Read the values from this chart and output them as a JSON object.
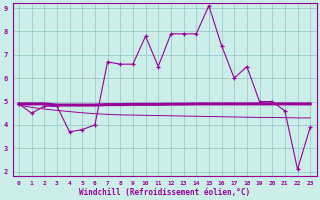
{
  "xlabel": "Windchill (Refroidissement éolien,°C)",
  "bg_color": "#cceee8",
  "grid_color": "#99cccc",
  "line_color": "#990099",
  "xlim": [
    -0.5,
    23.5
  ],
  "ylim": [
    1.8,
    9.2
  ],
  "yticks": [
    2,
    3,
    4,
    5,
    6,
    7,
    8,
    9
  ],
  "xticks": [
    0,
    1,
    2,
    3,
    4,
    5,
    6,
    7,
    8,
    9,
    10,
    11,
    12,
    13,
    14,
    15,
    16,
    17,
    18,
    19,
    20,
    21,
    22,
    23
  ],
  "xtick_labels": [
    "0",
    "1",
    "2",
    "3",
    "4",
    "5",
    "6",
    "7",
    "8",
    "9",
    "10",
    "11",
    "12",
    "13",
    "14",
    "15",
    "16",
    "17",
    "18",
    "19",
    "20",
    "21",
    "22",
    "23"
  ],
  "series1_x": [
    0,
    1,
    2,
    3,
    4,
    5,
    6,
    7,
    8,
    9,
    10,
    11,
    12,
    13,
    14,
    15,
    16,
    17,
    18,
    19,
    20,
    21,
    22,
    23
  ],
  "series1_y": [
    4.9,
    4.5,
    4.8,
    4.8,
    3.7,
    3.8,
    4.0,
    6.7,
    6.6,
    6.6,
    7.8,
    6.5,
    7.9,
    7.9,
    7.9,
    9.1,
    7.4,
    6.0,
    6.5,
    5.0,
    5.0,
    4.6,
    2.1,
    3.9
  ],
  "series2_x": [
    0,
    1,
    2,
    3,
    4,
    5,
    6,
    7,
    8,
    9,
    10,
    11,
    12,
    13,
    14,
    15,
    16,
    17,
    18,
    19,
    20,
    21,
    22,
    23
  ],
  "series2_y": [
    4.9,
    4.9,
    4.9,
    4.85,
    4.85,
    4.85,
    4.85,
    4.87,
    4.87,
    4.88,
    4.88,
    4.88,
    4.89,
    4.89,
    4.9,
    4.9,
    4.9,
    4.9,
    4.9,
    4.9,
    4.9,
    4.9,
    4.9,
    4.9
  ],
  "series3_x": [
    0,
    1,
    2,
    3,
    4,
    5,
    6,
    7,
    8,
    9,
    10,
    11,
    12,
    13,
    14,
    15,
    16,
    17,
    18,
    19,
    20,
    21,
    22,
    23
  ],
  "series3_y": [
    4.85,
    4.75,
    4.68,
    4.62,
    4.57,
    4.52,
    4.48,
    4.45,
    4.43,
    4.42,
    4.41,
    4.4,
    4.39,
    4.38,
    4.37,
    4.36,
    4.35,
    4.34,
    4.33,
    4.32,
    4.32,
    4.31,
    4.3,
    4.3
  ]
}
